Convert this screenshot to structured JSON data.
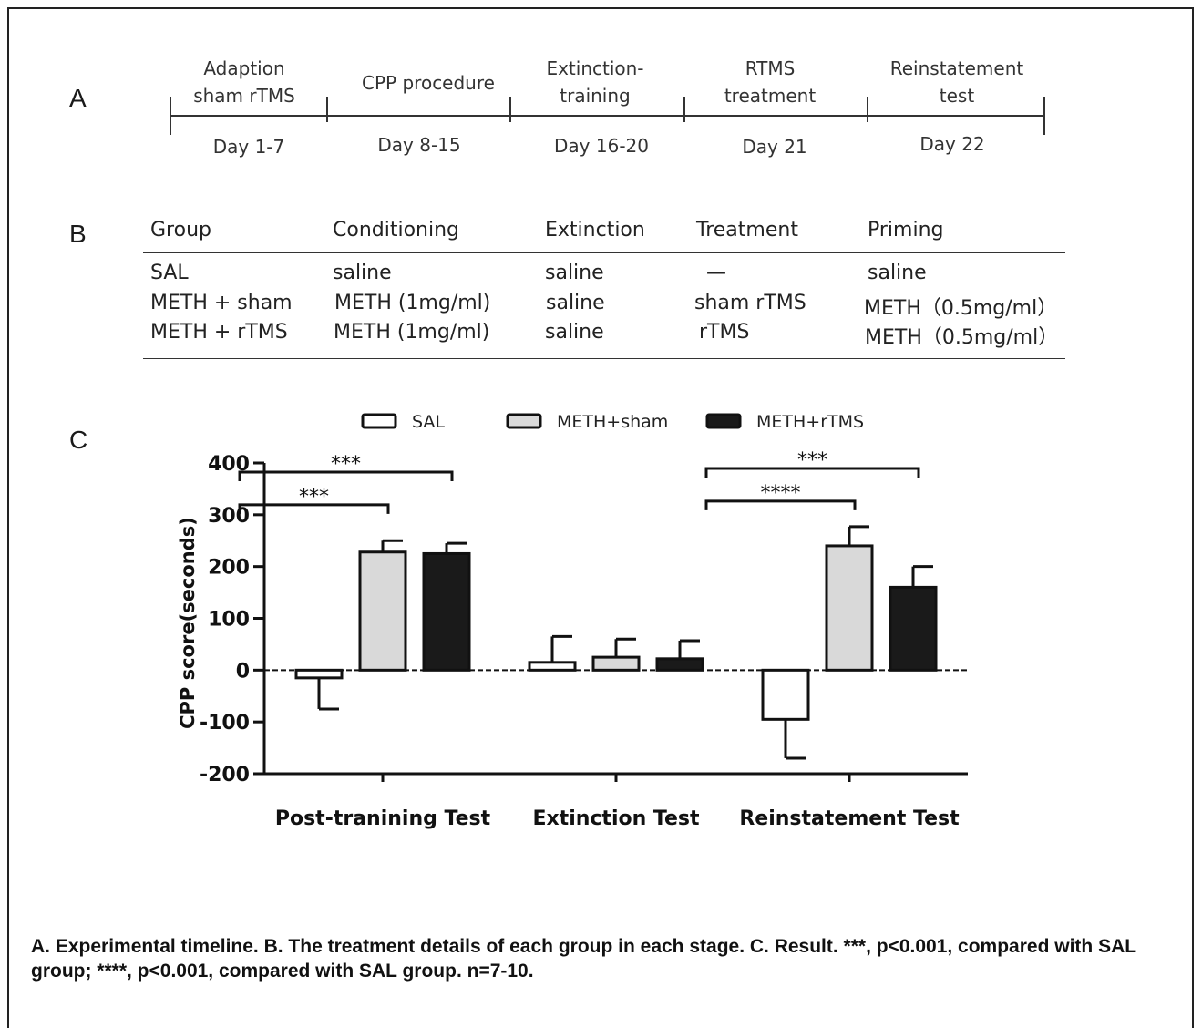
{
  "panels": {
    "a": "A",
    "b": "B",
    "c": "C"
  },
  "timeline": {
    "stages": [
      {
        "label": "Adaption sham rTMS",
        "lines": [
          "Adaption",
          "sham rTMS"
        ],
        "days": "Day  1-7"
      },
      {
        "label": "CPP procedure",
        "lines": [
          "CPP procedure"
        ],
        "days": "Day  8-15"
      },
      {
        "label": "Extinction-training",
        "lines": [
          "Extinction-",
          "training"
        ],
        "days": "Day  16-20"
      },
      {
        "label": "RTMS treatment",
        "lines": [
          "RTMS",
          "treatment"
        ],
        "days": "Day  21"
      },
      {
        "label": "Reinstatement test",
        "lines": [
          "Reinstatement",
          "test"
        ],
        "days": "Day  22"
      }
    ]
  },
  "table": {
    "headers": [
      "Group",
      "Conditioning",
      "Extinction",
      "Treatment",
      "Priming"
    ],
    "rows": [
      [
        "SAL",
        "saline",
        "saline",
        "—",
        "saline"
      ],
      [
        "METH + sham",
        "METH (1mg/ml)",
        "saline",
        "sham rTMS",
        "METH（0.5mg/ml）"
      ],
      [
        "METH + rTMS",
        "METH (1mg/ml)",
        "saline",
        "rTMS",
        "METH（0.5mg/ml）"
      ]
    ]
  },
  "chart_data": {
    "type": "bar",
    "title": "",
    "xlabel": "",
    "ylabel": "CPP score(seconds)",
    "ylim": [
      -200,
      400
    ],
    "yticks": [
      -200,
      -100,
      0,
      100,
      200,
      300,
      400
    ],
    "categories": [
      "Post-tranining Test",
      "Extinction Test",
      "Reinstatement Test"
    ],
    "series": [
      {
        "name": "SAL",
        "color": "#ffffff",
        "values": [
          -15,
          15,
          -95
        ],
        "errors": [
          60,
          50,
          75
        ]
      },
      {
        "name": "METH+sham",
        "color": "#d9d9d9",
        "values": [
          228,
          25,
          240
        ],
        "errors": [
          22,
          35,
          37
        ]
      },
      {
        "name": "METH+rTMS",
        "color": "#1a1a1a",
        "values": [
          225,
          22,
          160
        ],
        "errors": [
          20,
          35,
          40
        ]
      }
    ],
    "legend": "top",
    "significance": [
      {
        "category": 0,
        "from": "SAL",
        "to": "METH+sham",
        "label": "***"
      },
      {
        "category": 0,
        "from": "SAL",
        "to": "METH+rTMS",
        "label": "***"
      },
      {
        "category": 2,
        "from": "SAL",
        "to": "METH+sham",
        "label": "****"
      },
      {
        "category": 2,
        "from": "SAL",
        "to": "METH+rTMS",
        "label": "***"
      }
    ]
  },
  "caption": "A. Experimental timeline. B. The treatment details of each group in each stage. C. Result. ***, p<0.001, compared with SAL group; ****, p<0.001, compared with SAL group. n=7-10."
}
